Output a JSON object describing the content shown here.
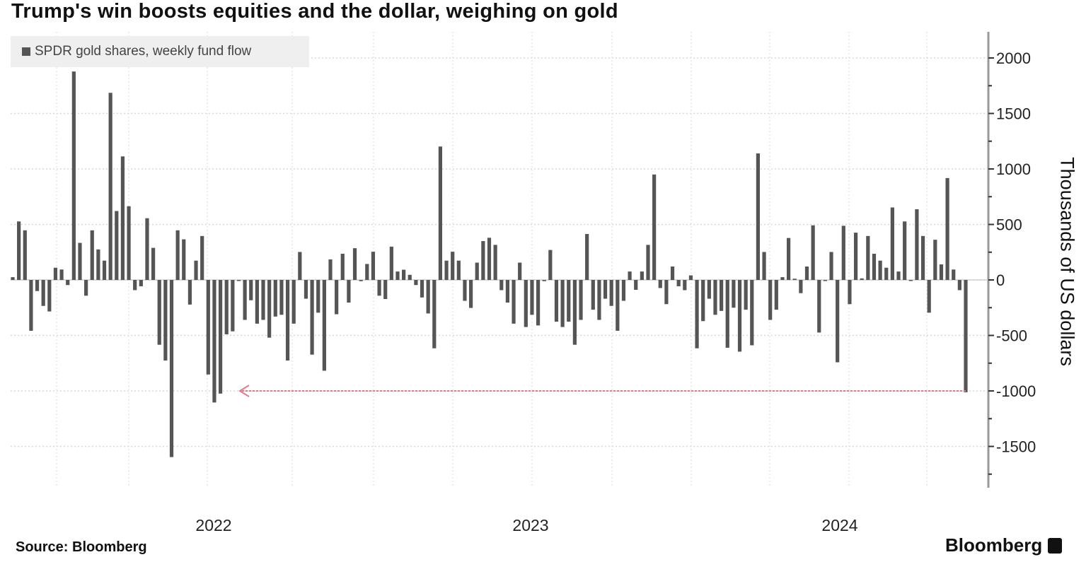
{
  "title": "Trump's win boosts equities and the dollar, weighing on gold",
  "source": "Source: Bloomberg",
  "logo": "Bloomberg",
  "colors": {
    "bar": "#555555",
    "arrow": "#e07a8c",
    "grid": "#d8d8d8",
    "legend_bg": "#efefef"
  },
  "chart_data": {
    "type": "bar",
    "title": "Trump's win boosts equities and the dollar, weighing on gold",
    "legend": {
      "entries": [
        "SPDR gold shares, weekly fund flow"
      ],
      "placement": "top-left"
    },
    "series": [
      {
        "name": "SPDR gold shares, weekly fund flow",
        "frequency": "weekly",
        "values": [
          25,
          527,
          447,
          -458,
          -100,
          -234,
          -284,
          110,
          94,
          -46,
          1878,
          334,
          -142,
          447,
          275,
          174,
          1686,
          621,
          1113,
          664,
          -92,
          -57,
          556,
          289,
          -584,
          -726,
          -1596,
          447,
          366,
          -222,
          174,
          396,
          -852,
          -1104,
          -1024,
          -490,
          -463,
          -5,
          -360,
          -183,
          -394,
          -360,
          -520,
          -330,
          -314,
          -726,
          -394,
          252,
          -169,
          -673,
          -295,
          -818,
          185,
          -309,
          236,
          -204,
          286,
          -11,
          144,
          254,
          -142,
          -172,
          300,
          76,
          92,
          46,
          -46,
          -158,
          -302,
          -616,
          1202,
          174,
          254,
          174,
          -188,
          -252,
          156,
          350,
          380,
          316,
          -92,
          -204,
          -394,
          156,
          -424,
          -314,
          -410,
          -11,
          270,
          -376,
          -424,
          -376,
          -584,
          -360,
          414,
          -268,
          -360,
          -169,
          -234,
          -458,
          -188,
          76,
          -89,
          76,
          316,
          950,
          -73,
          -218,
          121,
          -57,
          -92,
          41,
          -616,
          -371,
          -169,
          -314,
          -279,
          -611,
          -250,
          -646,
          -268,
          -589,
          1140,
          252,
          -360,
          -268,
          25,
          378,
          11,
          -119,
          121,
          492,
          -474,
          -9,
          252,
          -742,
          488,
          -218,
          426,
          14,
          396,
          236,
          174,
          110,
          653,
          76,
          527,
          -9,
          637,
          396,
          -295,
          362,
          140,
          918,
          94,
          -92,
          -1012
        ]
      }
    ],
    "xlabel": "",
    "x_tick_labels": [
      "2022",
      "2023",
      "2024"
    ],
    "ylabel": "Thousands of US dollars",
    "y_axis_side": "right",
    "y_ticks": [
      2000,
      1500,
      1000,
      500,
      0,
      -500,
      -1000,
      -1500
    ],
    "ylim": [
      -1850,
      2250
    ],
    "grid": true,
    "annotations": [
      {
        "type": "arrow",
        "from_value": -1000,
        "direction": "left",
        "note_level": -1000
      }
    ]
  }
}
